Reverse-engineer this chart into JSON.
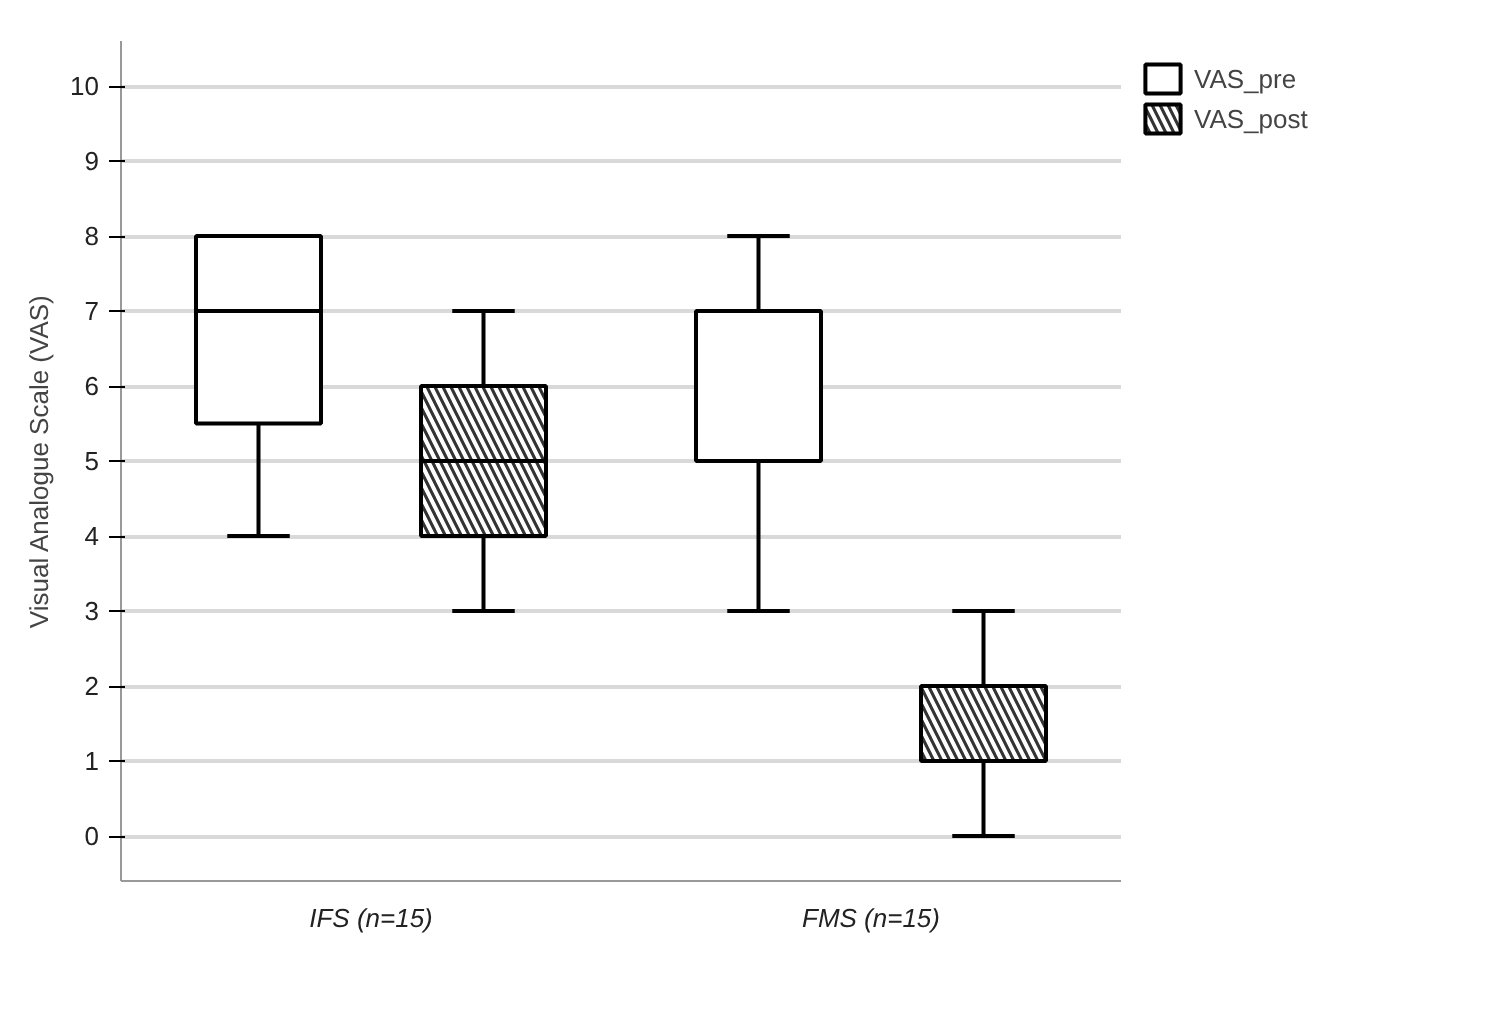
{
  "chart_data": {
    "type": "box",
    "ylabel": "Visual Analogue Scale (VAS)",
    "categories": [
      "IFS (n=15)",
      "FMS (n=15)"
    ],
    "series": [
      {
        "name": "VAS_pre",
        "color": "#ffffff",
        "boxes": [
          {
            "low": 4,
            "q1": 5.5,
            "median": 7,
            "q3": 8,
            "high": 8
          },
          {
            "low": 3,
            "q1": 5,
            "median": 5,
            "q3": 7,
            "high": 8
          }
        ]
      },
      {
        "name": "VAS_post",
        "color": "#333333",
        "boxes": [
          {
            "low": 3,
            "q1": 4,
            "median": 5,
            "q3": 6,
            "high": 7
          },
          {
            "low": 0,
            "q1": 1,
            "median": 2,
            "q3": 2,
            "high": 3
          }
        ]
      }
    ],
    "ylim": [
      -0.6,
      10.6
    ],
    "yticks": [
      0,
      1,
      2,
      3,
      4,
      5,
      6,
      7,
      8,
      9,
      10
    ],
    "grid": "y",
    "legend": "top right"
  }
}
